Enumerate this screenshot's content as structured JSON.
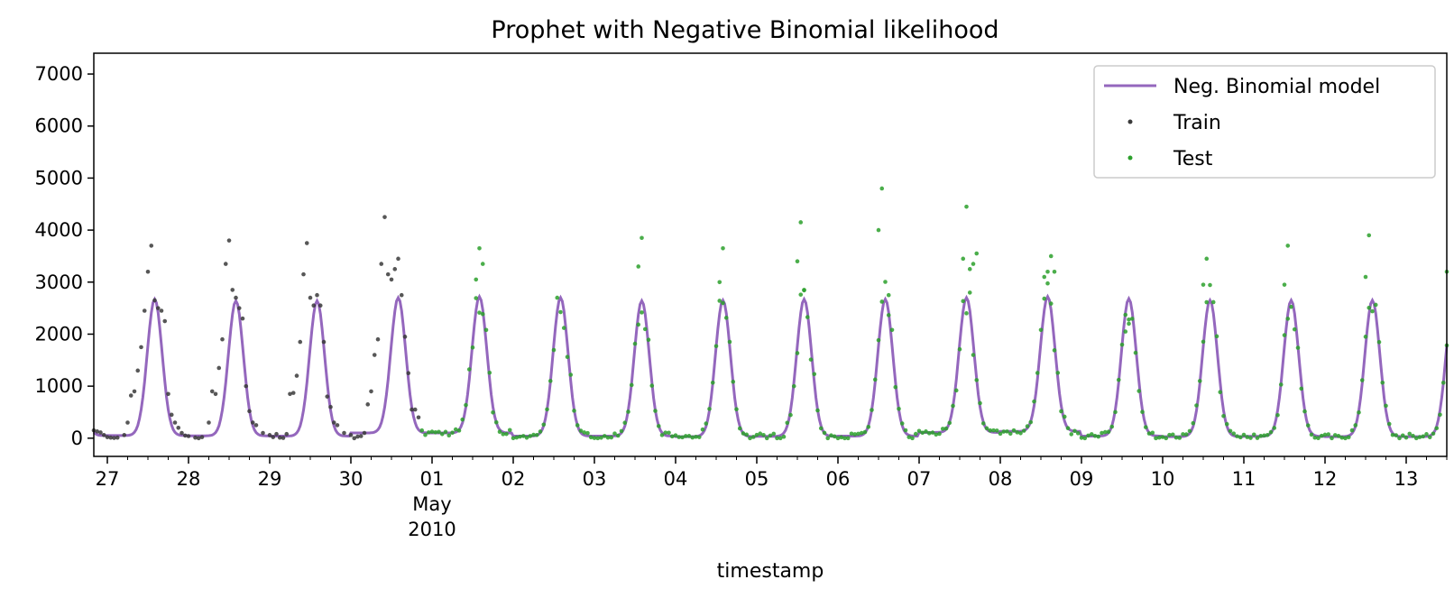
{
  "chart_data": {
    "type": "line+scatter",
    "title": "Prophet with Negative Binomial likelihood",
    "xlabel": "timestamp",
    "ylabel": "",
    "ylim": [
      -350,
      7400
    ],
    "xlim": [
      "2010-04-26T20:00",
      "2010-05-13T12:00"
    ],
    "y_ticks": [
      0,
      1000,
      2000,
      3000,
      4000,
      5000,
      6000,
      7000
    ],
    "x_ticks": [
      {
        "date": "2010-04-27",
        "label": "27"
      },
      {
        "date": "2010-04-28",
        "label": "28"
      },
      {
        "date": "2010-04-29",
        "label": "29"
      },
      {
        "date": "2010-04-30",
        "label": "30"
      },
      {
        "date": "2010-05-01",
        "label": "01"
      },
      {
        "date": "2010-05-02",
        "label": "02"
      },
      {
        "date": "2010-05-03",
        "label": "03"
      },
      {
        "date": "2010-05-04",
        "label": "04"
      },
      {
        "date": "2010-05-05",
        "label": "05"
      },
      {
        "date": "2010-05-06",
        "label": "06"
      },
      {
        "date": "2010-05-07",
        "label": "07"
      },
      {
        "date": "2010-05-08",
        "label": "08"
      },
      {
        "date": "2010-05-09",
        "label": "09"
      },
      {
        "date": "2010-05-10",
        "label": "10"
      },
      {
        "date": "2010-05-11",
        "label": "11"
      },
      {
        "date": "2010-05-12",
        "label": "12"
      },
      {
        "date": "2010-05-13",
        "label": "13"
      }
    ],
    "x_tick_sublabels": {
      "month": "May",
      "year": "2010"
    },
    "grid": false,
    "legend_position": "top-right",
    "colors": {
      "model": "#9467bd",
      "train": "#3a3a3a",
      "test": "#2ca02c"
    },
    "series": [
      {
        "name": "Neg. Binomial model",
        "kind": "line",
        "timing": {
          "start": "2010-04-26T20:00",
          "step_hours": 1
        },
        "peaks": [
          2650,
          2620,
          2620,
          2680,
          2700,
          2680,
          2620,
          2630,
          2650,
          2650,
          2680,
          2700,
          2660,
          2630,
          2630,
          2630,
          2650
        ],
        "troughs": [
          30,
          25,
          20,
          80,
          80,
          20,
          20,
          10,
          15,
          20,
          90,
          110,
          20,
          10,
          15,
          10,
          10
        ],
        "peak_hour": 14
      },
      {
        "name": "Train",
        "kind": "scatter",
        "points": [
          [
            "2010-04-26T20:00",
            150
          ],
          [
            "2010-04-26T21:00",
            130
          ],
          [
            "2010-04-26T22:00",
            110
          ],
          [
            "2010-04-26T23:00",
            60
          ],
          [
            "2010-04-27T00:00",
            20
          ],
          [
            "2010-04-27T01:00",
            10
          ],
          [
            "2010-04-27T02:00",
            5
          ],
          [
            "2010-04-27T03:00",
            10
          ],
          [
            "2010-04-27T05:00",
            60
          ],
          [
            "2010-04-27T06:00",
            300
          ],
          [
            "2010-04-27T07:00",
            820
          ],
          [
            "2010-04-27T08:00",
            900
          ],
          [
            "2010-04-27T09:00",
            1300
          ],
          [
            "2010-04-27T10:00",
            1750
          ],
          [
            "2010-04-27T11:00",
            2450
          ],
          [
            "2010-04-27T12:00",
            3200
          ],
          [
            "2010-04-27T13:00",
            3700
          ],
          [
            "2010-04-27T14:00",
            2650
          ],
          [
            "2010-04-27T15:00",
            2500
          ],
          [
            "2010-04-27T16:00",
            2450
          ],
          [
            "2010-04-27T17:00",
            2250
          ],
          [
            "2010-04-27T18:00",
            850
          ],
          [
            "2010-04-27T19:00",
            450
          ],
          [
            "2010-04-27T20:00",
            300
          ],
          [
            "2010-04-27T21:00",
            200
          ],
          [
            "2010-04-27T22:00",
            100
          ],
          [
            "2010-04-27T23:00",
            50
          ],
          [
            "2010-04-28T00:00",
            40
          ],
          [
            "2010-04-28T02:00",
            10
          ],
          [
            "2010-04-28T03:00",
            0
          ],
          [
            "2010-04-28T04:00",
            20
          ],
          [
            "2010-04-28T06:00",
            300
          ],
          [
            "2010-04-28T07:00",
            900
          ],
          [
            "2010-04-28T08:00",
            850
          ],
          [
            "2010-04-28T09:00",
            1350
          ],
          [
            "2010-04-28T10:00",
            1900
          ],
          [
            "2010-04-28T11:00",
            3350
          ],
          [
            "2010-04-28T12:00",
            3800
          ],
          [
            "2010-04-28T13:00",
            2850
          ],
          [
            "2010-04-28T14:00",
            2700
          ],
          [
            "2010-04-28T15:00",
            2500
          ],
          [
            "2010-04-28T16:00",
            2300
          ],
          [
            "2010-04-28T17:00",
            1000
          ],
          [
            "2010-04-28T18:00",
            520
          ],
          [
            "2010-04-28T19:00",
            300
          ],
          [
            "2010-04-28T20:00",
            250
          ],
          [
            "2010-04-28T22:00",
            100
          ],
          [
            "2010-04-29T00:00",
            60
          ],
          [
            "2010-04-29T01:00",
            20
          ],
          [
            "2010-04-29T02:00",
            80
          ],
          [
            "2010-04-29T03:00",
            10
          ],
          [
            "2010-04-29T04:00",
            5
          ],
          [
            "2010-04-29T05:00",
            80
          ],
          [
            "2010-04-29T06:00",
            850
          ],
          [
            "2010-04-29T07:00",
            870
          ],
          [
            "2010-04-29T08:00",
            1200
          ],
          [
            "2010-04-29T09:00",
            1850
          ],
          [
            "2010-04-29T10:00",
            3150
          ],
          [
            "2010-04-29T11:00",
            3750
          ],
          [
            "2010-04-29T12:00",
            2700
          ],
          [
            "2010-04-29T13:00",
            2550
          ],
          [
            "2010-04-29T14:00",
            2750
          ],
          [
            "2010-04-29T15:00",
            2550
          ],
          [
            "2010-04-29T16:00",
            1850
          ],
          [
            "2010-04-29T17:00",
            800
          ],
          [
            "2010-04-29T18:00",
            600
          ],
          [
            "2010-04-29T19:00",
            300
          ],
          [
            "2010-04-29T20:00",
            250
          ],
          [
            "2010-04-29T22:00",
            100
          ],
          [
            "2010-04-30T00:00",
            60
          ],
          [
            "2010-04-30T01:00",
            0
          ],
          [
            "2010-04-30T02:00",
            30
          ],
          [
            "2010-04-30T03:00",
            40
          ],
          [
            "2010-04-30T04:00",
            100
          ],
          [
            "2010-04-30T05:00",
            650
          ],
          [
            "2010-04-30T06:00",
            900
          ],
          [
            "2010-04-30T07:00",
            1600
          ],
          [
            "2010-04-30T08:00",
            1900
          ],
          [
            "2010-04-30T09:00",
            3350
          ],
          [
            "2010-04-30T10:00",
            4250
          ],
          [
            "2010-04-30T11:00",
            3150
          ],
          [
            "2010-04-30T12:00",
            3050
          ],
          [
            "2010-04-30T13:00",
            3250
          ],
          [
            "2010-04-30T14:00",
            3450
          ],
          [
            "2010-04-30T15:00",
            2750
          ],
          [
            "2010-04-30T16:00",
            1950
          ],
          [
            "2010-04-30T17:00",
            1250
          ],
          [
            "2010-04-30T18:00",
            550
          ],
          [
            "2010-04-30T19:00",
            550
          ],
          [
            "2010-04-30T20:00",
            400
          ]
        ]
      },
      {
        "name": "Test",
        "kind": "scatter",
        "point_model": {
          "start": "2010-04-30T21:00",
          "end": "2010-05-13T12:00",
          "step_hours": 1,
          "noise": "poisson-like around model"
        },
        "extra_points": [
          [
            "2010-05-01T13:00",
            3050
          ],
          [
            "2010-05-01T14:00",
            3650
          ],
          [
            "2010-05-01T15:00",
            3350
          ],
          [
            "2010-05-03T13:00",
            3300
          ],
          [
            "2010-05-03T14:00",
            3850
          ],
          [
            "2010-05-04T13:00",
            3000
          ],
          [
            "2010-05-04T14:00",
            3650
          ],
          [
            "2010-05-05T12:00",
            3400
          ],
          [
            "2010-05-05T13:00",
            4150
          ],
          [
            "2010-05-05T14:00",
            2850
          ],
          [
            "2010-05-06T12:00",
            4000
          ],
          [
            "2010-05-06T13:00",
            4800
          ],
          [
            "2010-05-06T15:00",
            2750
          ],
          [
            "2010-05-07T13:00",
            3450
          ],
          [
            "2010-05-07T14:00",
            4450
          ],
          [
            "2010-05-07T15:00",
            3250
          ],
          [
            "2010-05-07T17:00",
            3550
          ],
          [
            "2010-05-07T16:00",
            3350
          ],
          [
            "2010-05-08T13:00",
            3100
          ],
          [
            "2010-05-08T14:00",
            3200
          ],
          [
            "2010-05-08T15:00",
            3500
          ],
          [
            "2010-05-08T16:00",
            3200
          ],
          [
            "2010-05-09T13:00",
            2050
          ],
          [
            "2010-05-09T14:00",
            2200
          ],
          [
            "2010-05-10T12:00",
            2950
          ],
          [
            "2010-05-10T13:00",
            3450
          ],
          [
            "2010-05-11T12:00",
            2950
          ],
          [
            "2010-05-11T13:00",
            3700
          ],
          [
            "2010-05-12T12:00",
            3100
          ],
          [
            "2010-05-12T13:00",
            3900
          ],
          [
            "2010-05-13T12:00",
            3200
          ]
        ]
      }
    ]
  }
}
